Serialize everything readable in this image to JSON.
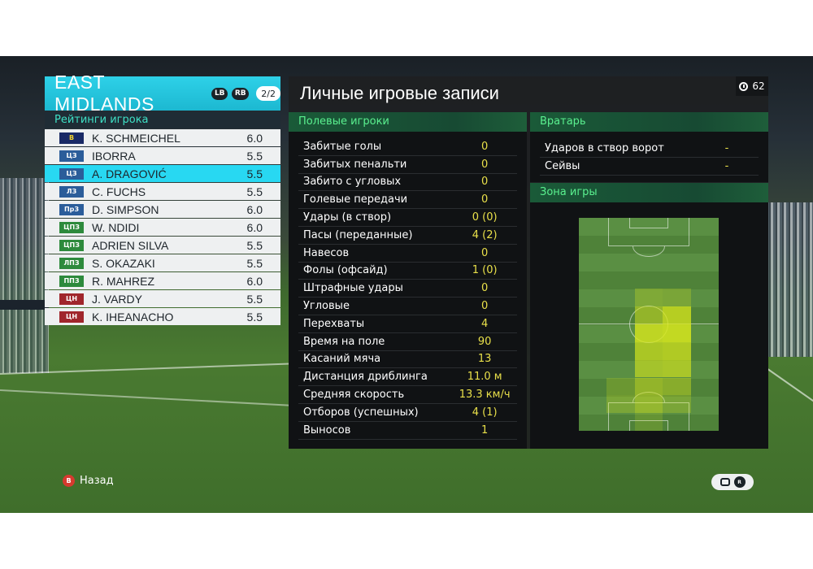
{
  "team": {
    "name": "EAST MIDLANDS",
    "lb_label": "LB",
    "rb_label": "RB",
    "page": "2/2"
  },
  "ratings_title": "Рейтинги игрока",
  "players": [
    {
      "pos": "В",
      "pos_color": "#1a2a66",
      "pos_text_color": "#f2d22e",
      "name": "K. SCHMEICHEL",
      "rating": "6.0",
      "selected": false
    },
    {
      "pos": "ЦЗ",
      "pos_color": "#2b5d9a",
      "pos_text_color": "#ffffff",
      "name": "IBORRA",
      "rating": "5.5",
      "selected": false
    },
    {
      "pos": "ЦЗ",
      "pos_color": "#2b5d9a",
      "pos_text_color": "#ffffff",
      "name": "A. DRAGOVIĆ",
      "rating": "5.5",
      "selected": true
    },
    {
      "pos": "ЛЗ",
      "pos_color": "#2b5d9a",
      "pos_text_color": "#ffffff",
      "name": "C. FUCHS",
      "rating": "5.5",
      "selected": false
    },
    {
      "pos": "ПрЗ",
      "pos_color": "#2b5d9a",
      "pos_text_color": "#ffffff",
      "name": "D. SIMPSON",
      "rating": "6.0",
      "selected": false
    },
    {
      "pos": "ЦПЗ",
      "pos_color": "#2d8a3c",
      "pos_text_color": "#ffffff",
      "name": "W. NDIDI",
      "rating": "6.0",
      "selected": false
    },
    {
      "pos": "ЦПЗ",
      "pos_color": "#2d8a3c",
      "pos_text_color": "#ffffff",
      "name": "ADRIEN SILVA",
      "rating": "5.5",
      "selected": false
    },
    {
      "pos": "ЛПЗ",
      "pos_color": "#2d8a3c",
      "pos_text_color": "#ffffff",
      "name": "S. OKAZAKI",
      "rating": "5.5",
      "selected": false
    },
    {
      "pos": "ППЗ",
      "pos_color": "#2d8a3c",
      "pos_text_color": "#ffffff",
      "name": "R. MAHREZ",
      "rating": "6.0",
      "selected": false
    },
    {
      "pos": "ЦН",
      "pos_color": "#a0262c",
      "pos_text_color": "#ffffff",
      "name": "J. VARDY",
      "rating": "5.5",
      "selected": false
    },
    {
      "pos": "ЦН",
      "pos_color": "#a0262c",
      "pos_text_color": "#ffffff",
      "name": "K. IHEANACHO",
      "rating": "5.5",
      "selected": false
    }
  ],
  "main": {
    "title": "Личные игровые записи",
    "time": "62",
    "field_players_title": "Полевые игроки",
    "goalkeeper_title": "Вратарь",
    "zone_title": "Зона игры",
    "stats": [
      {
        "label": "Забитые голы",
        "value": "0"
      },
      {
        "label": "Забитых пенальти",
        "value": "0"
      },
      {
        "label": "Забито с угловых",
        "value": "0"
      },
      {
        "label": "Голевые передачи",
        "value": "0"
      },
      {
        "label": "Удары (в створ)",
        "value": "0 (0)"
      },
      {
        "label": "Пасы (переданные)",
        "value": "4 (2)"
      },
      {
        "label": "Навесов",
        "value": "0"
      },
      {
        "label": "Фолы (офсайд)",
        "value": "1 (0)"
      },
      {
        "label": "Штрафные удары",
        "value": "0"
      },
      {
        "label": "Угловые",
        "value": "0"
      },
      {
        "label": "Перехваты",
        "value": "4"
      },
      {
        "label": "Время на поле",
        "value": "90"
      },
      {
        "label": "Касаний мяча",
        "value": "13"
      },
      {
        "label": "Дистанция дриблинга",
        "value": "11.0 м"
      },
      {
        "label": "Средняя скорость",
        "value": "13.3 км/ч"
      },
      {
        "label": "Отборов (успешных)",
        "value": "4 (1)"
      },
      {
        "label": "Выносов",
        "value": "1"
      }
    ],
    "goalkeeper": [
      {
        "label": "Ударов в створ ворот",
        "value": "-"
      },
      {
        "label": "Сейвы",
        "value": "-"
      }
    ]
  },
  "heatmap": {
    "intensity_color": "#d6e61c",
    "cells": [
      {
        "col": 2,
        "row": 4,
        "level": 0.35
      },
      {
        "col": 3,
        "row": 4,
        "level": 0.3
      },
      {
        "col": 2,
        "row": 5,
        "level": 0.6
      },
      {
        "col": 3,
        "row": 5,
        "level": 0.9
      },
      {
        "col": 2,
        "row": 6,
        "level": 0.95
      },
      {
        "col": 3,
        "row": 6,
        "level": 1.0
      },
      {
        "col": 2,
        "row": 7,
        "level": 0.8
      },
      {
        "col": 3,
        "row": 7,
        "level": 0.85
      },
      {
        "col": 2,
        "row": 8,
        "level": 0.7
      },
      {
        "col": 3,
        "row": 8,
        "level": 0.75
      },
      {
        "col": 1,
        "row": 9,
        "level": 0.25
      },
      {
        "col": 2,
        "row": 9,
        "level": 0.6
      },
      {
        "col": 3,
        "row": 9,
        "level": 0.5
      },
      {
        "col": 1,
        "row": 10,
        "level": 0.3
      },
      {
        "col": 2,
        "row": 10,
        "level": 0.55
      },
      {
        "col": 3,
        "row": 10,
        "level": 0.3
      },
      {
        "col": 2,
        "row": 11,
        "level": 0.2
      }
    ]
  },
  "footer": {
    "back_button": "B",
    "back_label": "Назад",
    "rs_label": "R"
  }
}
